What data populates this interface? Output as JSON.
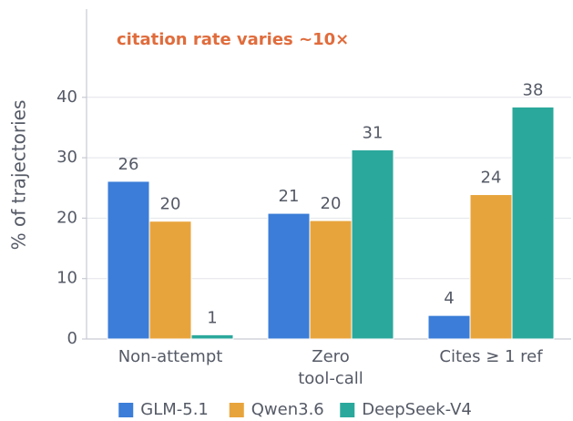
{
  "chart_data": {
    "type": "bar",
    "annotation": "citation rate varies ∼10×",
    "ylabel": "% of trajectories",
    "categories": [
      "Non-attempt",
      "Zero\ntool-call",
      "Cites ≥ 1 ref"
    ],
    "series": [
      {
        "name": "GLM-5.1",
        "color": "#3b7dd8",
        "values": [
          26.1,
          20.8,
          3.9
        ],
        "value_labels": [
          "26",
          "21",
          "4"
        ]
      },
      {
        "name": "Qwen3.6",
        "color": "#e8a43c",
        "values": [
          19.5,
          19.6,
          23.9
        ],
        "value_labels": [
          "20",
          "20",
          "24"
        ]
      },
      {
        "name": "DeepSeek-V4",
        "color": "#2ba89c",
        "values": [
          0.7,
          31.3,
          38.4
        ],
        "value_labels": [
          "1",
          "31",
          "38"
        ]
      }
    ],
    "ylim": [
      0,
      54.6
    ],
    "yticks": [
      0,
      10,
      20,
      30,
      40
    ],
    "grid": true,
    "legend": "lower center"
  }
}
